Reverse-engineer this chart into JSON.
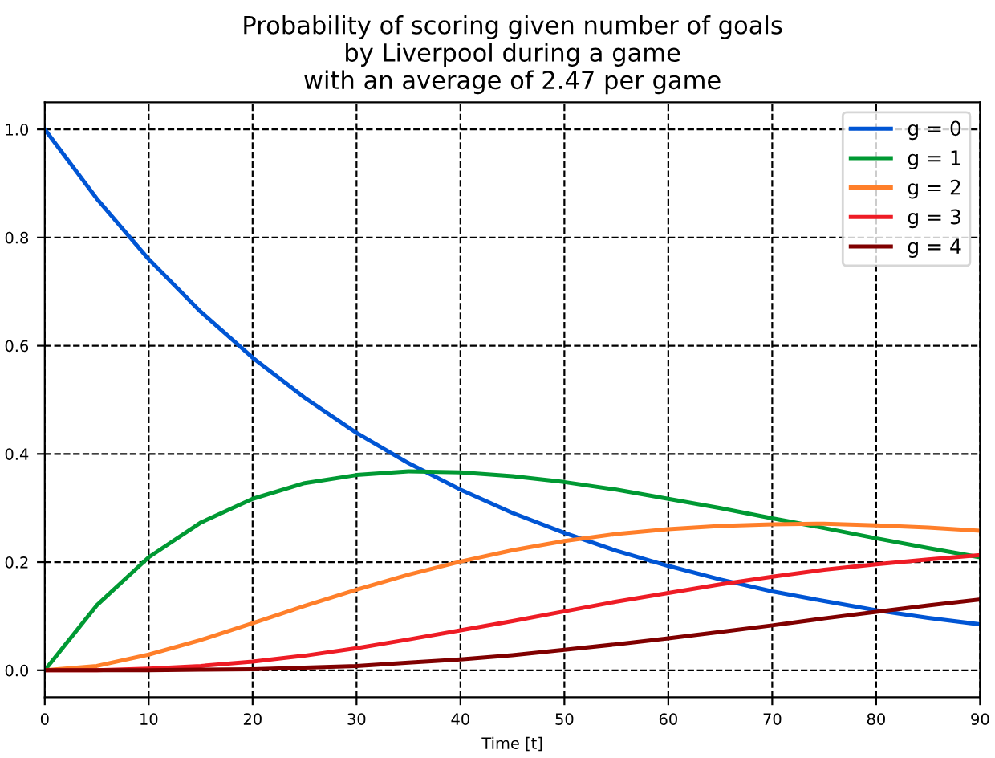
{
  "chart_data": {
    "type": "line",
    "title": "Probability of scoring given number of goals\nby Liverpool during a game\nwith an average of 2.47 per game",
    "xlabel": "Time [t]",
    "x": [
      0,
      5,
      10,
      15,
      20,
      25,
      30,
      35,
      40,
      45,
      50,
      55,
      60,
      65,
      70,
      75,
      80,
      85,
      90
    ],
    "series": [
      {
        "name": "g = 0",
        "color": "#0055d4",
        "values": [
          1.0,
          0.872,
          0.76,
          0.663,
          0.578,
          0.504,
          0.439,
          0.383,
          0.334,
          0.291,
          0.254,
          0.221,
          0.193,
          0.168,
          0.146,
          0.128,
          0.111,
          0.097,
          0.085
        ]
      },
      {
        "name": "g = 1",
        "color": "#009933",
        "values": [
          0,
          0.12,
          0.209,
          0.273,
          0.317,
          0.346,
          0.361,
          0.368,
          0.366,
          0.359,
          0.348,
          0.334,
          0.317,
          0.3,
          0.281,
          0.263,
          0.244,
          0.226,
          0.209
        ]
      },
      {
        "name": "g = 2",
        "color": "#ff7f2a",
        "values": [
          0,
          0.008,
          0.029,
          0.056,
          0.087,
          0.119,
          0.149,
          0.177,
          0.201,
          0.222,
          0.239,
          0.252,
          0.261,
          0.267,
          0.27,
          0.271,
          0.268,
          0.264,
          0.258
        ]
      },
      {
        "name": "g = 3",
        "color": "#ee1c25",
        "values": [
          0,
          0.0,
          0.003,
          0.008,
          0.016,
          0.027,
          0.041,
          0.057,
          0.074,
          0.091,
          0.109,
          0.127,
          0.143,
          0.159,
          0.173,
          0.186,
          0.196,
          0.205,
          0.213
        ]
      },
      {
        "name": "g = 4",
        "color": "#800000",
        "values": [
          0,
          0.0,
          0.0,
          0.001,
          0.002,
          0.005,
          0.008,
          0.014,
          0.02,
          0.028,
          0.038,
          0.048,
          0.059,
          0.071,
          0.083,
          0.096,
          0.108,
          0.12,
          0.131
        ]
      }
    ],
    "xlim": [
      0,
      90
    ],
    "xticks": [
      0,
      10,
      20,
      30,
      40,
      50,
      60,
      70,
      80,
      90
    ],
    "ylim": [
      -0.05,
      1.05
    ],
    "yticks": [
      {
        "value": 0,
        "label": "0.0"
      },
      {
        "value": 0.2,
        "label": "0.2"
      },
      {
        "value": 0.4,
        "label": "0.4"
      },
      {
        "value": 0.6,
        "label": "0.6"
      },
      {
        "value": 0.8,
        "label": "0.8"
      },
      {
        "value": 1.0,
        "label": "1.0"
      }
    ],
    "grid": true,
    "line_style": "solid",
    "legend": "top right"
  }
}
